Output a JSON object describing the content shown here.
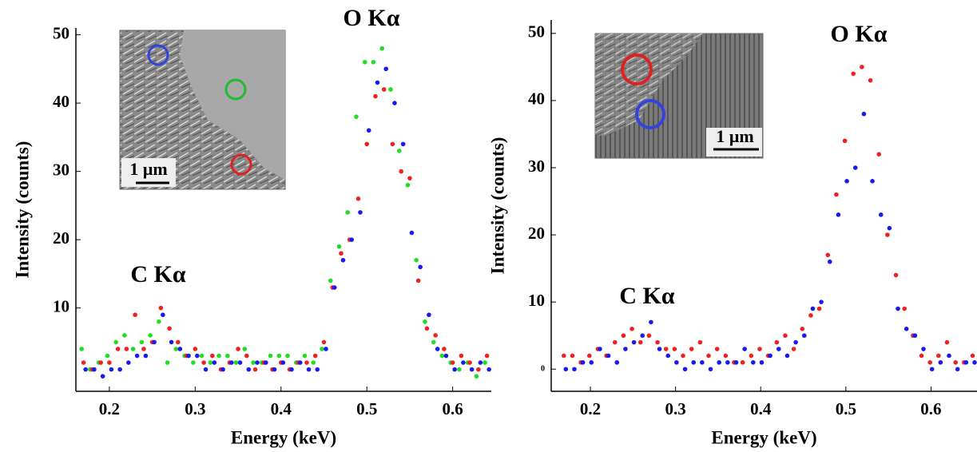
{
  "chart_data": [
    {
      "type": "scatter",
      "x_label": "Energy (keV)",
      "y_label": "Intensity (counts)",
      "annotations": [
        "O Kα",
        "C Kα"
      ],
      "inset_scale_label": "1 μm",
      "xlim": [
        0.161,
        0.645
      ],
      "ylim": [
        -2.2,
        51
      ],
      "xticks": [
        0.2,
        0.3,
        0.4,
        0.5,
        0.6
      ],
      "yticks": [
        10,
        20,
        30,
        40,
        50
      ],
      "x": [
        0.17,
        0.18,
        0.19,
        0.2,
        0.21,
        0.22,
        0.23,
        0.24,
        0.25,
        0.26,
        0.27,
        0.28,
        0.29,
        0.3,
        0.31,
        0.32,
        0.33,
        0.34,
        0.35,
        0.36,
        0.37,
        0.38,
        0.39,
        0.4,
        0.41,
        0.42,
        0.43,
        0.44,
        0.45,
        0.46,
        0.47,
        0.48,
        0.49,
        0.5,
        0.51,
        0.52,
        0.53,
        0.54,
        0.55,
        0.56,
        0.57,
        0.58,
        0.59,
        0.6,
        0.61,
        0.62,
        0.63,
        0.64
      ],
      "series": [
        {
          "color": "#22dd22",
          "values": [
            4,
            1,
            2,
            3,
            5,
            6,
            4,
            5,
            6,
            8,
            2,
            4,
            3,
            2,
            3,
            2,
            3,
            3,
            2,
            4,
            2,
            2,
            3,
            3,
            3,
            2,
            3,
            2,
            4,
            14,
            19,
            24,
            38,
            46,
            46,
            48,
            42,
            33,
            28,
            17,
            8,
            5,
            3,
            2,
            1,
            2,
            0,
            2
          ]
        },
        {
          "color": "#ee2222",
          "values": [
            2,
            1,
            2,
            2,
            4,
            4,
            9,
            4,
            5,
            10,
            7,
            5,
            3,
            4,
            2,
            3,
            1,
            2,
            4,
            3,
            1,
            2,
            1,
            2,
            1,
            2,
            2,
            3,
            5,
            13,
            18,
            20,
            26,
            34,
            41,
            42,
            34,
            30,
            29,
            14,
            7,
            6,
            4,
            2,
            3,
            2,
            1,
            3
          ]
        },
        {
          "color": "#1a1aee",
          "values": [
            1,
            1,
            0,
            1,
            1,
            2,
            3,
            3,
            5,
            9,
            5,
            4,
            3,
            3,
            1,
            2,
            1,
            2,
            2,
            1,
            2,
            2,
            1,
            2,
            1,
            2,
            1,
            1,
            4,
            13,
            17,
            20,
            24,
            36,
            43,
            45,
            40,
            34,
            21,
            16,
            9,
            4,
            3,
            1,
            2,
            1,
            2,
            1
          ]
        }
      ]
    },
    {
      "type": "scatter",
      "x_label": "Energy (keV)",
      "y_label": "Intensity (counts)",
      "annotations": [
        "O Kα",
        "C Kα"
      ],
      "inset_scale_label": "1 μm",
      "xlim": [
        0.154,
        0.654
      ],
      "ylim": [
        -3.3,
        52
      ],
      "xticks": [
        0.2,
        0.3,
        0.4,
        0.5,
        0.6
      ],
      "yticks": [
        0,
        10,
        20,
        30,
        40,
        50
      ],
      "x": [
        0.17,
        0.18,
        0.19,
        0.2,
        0.21,
        0.22,
        0.23,
        0.24,
        0.25,
        0.26,
        0.27,
        0.28,
        0.29,
        0.3,
        0.31,
        0.32,
        0.33,
        0.34,
        0.35,
        0.36,
        0.37,
        0.38,
        0.39,
        0.4,
        0.41,
        0.42,
        0.43,
        0.44,
        0.45,
        0.46,
        0.47,
        0.48,
        0.49,
        0.5,
        0.51,
        0.52,
        0.53,
        0.54,
        0.55,
        0.56,
        0.57,
        0.58,
        0.59,
        0.6,
        0.61,
        0.62,
        0.63,
        0.64,
        0.65
      ],
      "series": [
        {
          "color": "#ee2222",
          "values": [
            2,
            2,
            1,
            2,
            3,
            2,
            4,
            5,
            6,
            4,
            5,
            4,
            3,
            3,
            2,
            3,
            4,
            2,
            3,
            2,
            1,
            1,
            2,
            3,
            2,
            4,
            5,
            3,
            6,
            8,
            9,
            17,
            26,
            34,
            44,
            45,
            43,
            32,
            20,
            14,
            9,
            5,
            2,
            1,
            2,
            4,
            1,
            1,
            2
          ]
        },
        {
          "color": "#1a1aee",
          "values": [
            0,
            0,
            1,
            1,
            3,
            2,
            1,
            3,
            4,
            5,
            7,
            3,
            2,
            1,
            0,
            1,
            1,
            0,
            1,
            1,
            1,
            3,
            1,
            1,
            2,
            3,
            2,
            4,
            5,
            9,
            10,
            16,
            23,
            28,
            30,
            38,
            28,
            23,
            21,
            9,
            6,
            5,
            3,
            0,
            1,
            2,
            0,
            1,
            1
          ]
        }
      ]
    }
  ]
}
